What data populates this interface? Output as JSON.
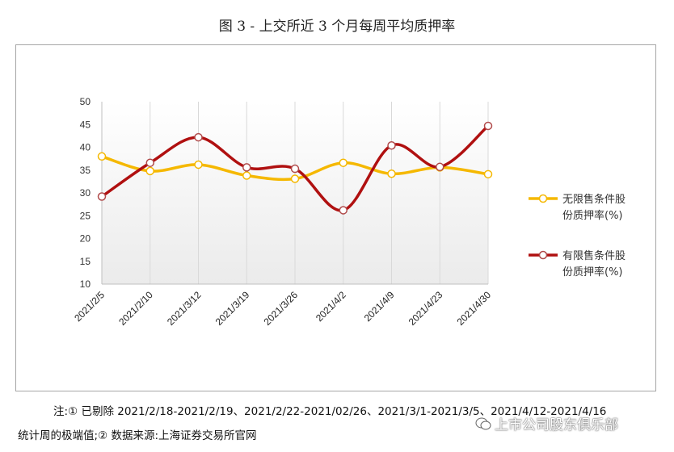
{
  "title": "图 3 - 上交所近 3 个月每周平均质押率",
  "chart_data": {
    "type": "line",
    "categories": [
      "2021/2/5",
      "2021/2/10",
      "2021/3/12",
      "2021/3/19",
      "2021/3/26",
      "2021/4/2",
      "2021/4/9",
      "2021/4/23",
      "2021/4/30"
    ],
    "ylim": [
      10,
      50
    ],
    "yticks": [
      10,
      15,
      20,
      25,
      30,
      35,
      40,
      45,
      50
    ],
    "grid": "vertical",
    "legend_position": "right",
    "series": [
      {
        "name": "无限售条件股份质押率(%)",
        "name_lines": [
          "无限售条件股",
          "份质押率(%)"
        ],
        "color": "#f5b800",
        "values": [
          38.0,
          34.8,
          36.2,
          33.8,
          33.1,
          36.6,
          34.2,
          35.6,
          34.1
        ]
      },
      {
        "name": "有限售条件股份质押率(%)",
        "name_lines": [
          "有限售条件股",
          "份质押率(%)"
        ],
        "color": "#b01010",
        "values": [
          29.2,
          36.6,
          42.2,
          35.6,
          35.3,
          26.2,
          40.4,
          35.7,
          44.7
        ]
      }
    ]
  },
  "notes": {
    "line1": "注:① 已剔除 2021/2/18-2021/2/19、2021/2/22-2021/02/26、2021/3/1-2021/3/5、2021/4/12-2021/4/16",
    "line2": "统计周的极端值;② 数据来源:上海证券交易所官网"
  },
  "watermark": "上市公司股东俱乐部"
}
